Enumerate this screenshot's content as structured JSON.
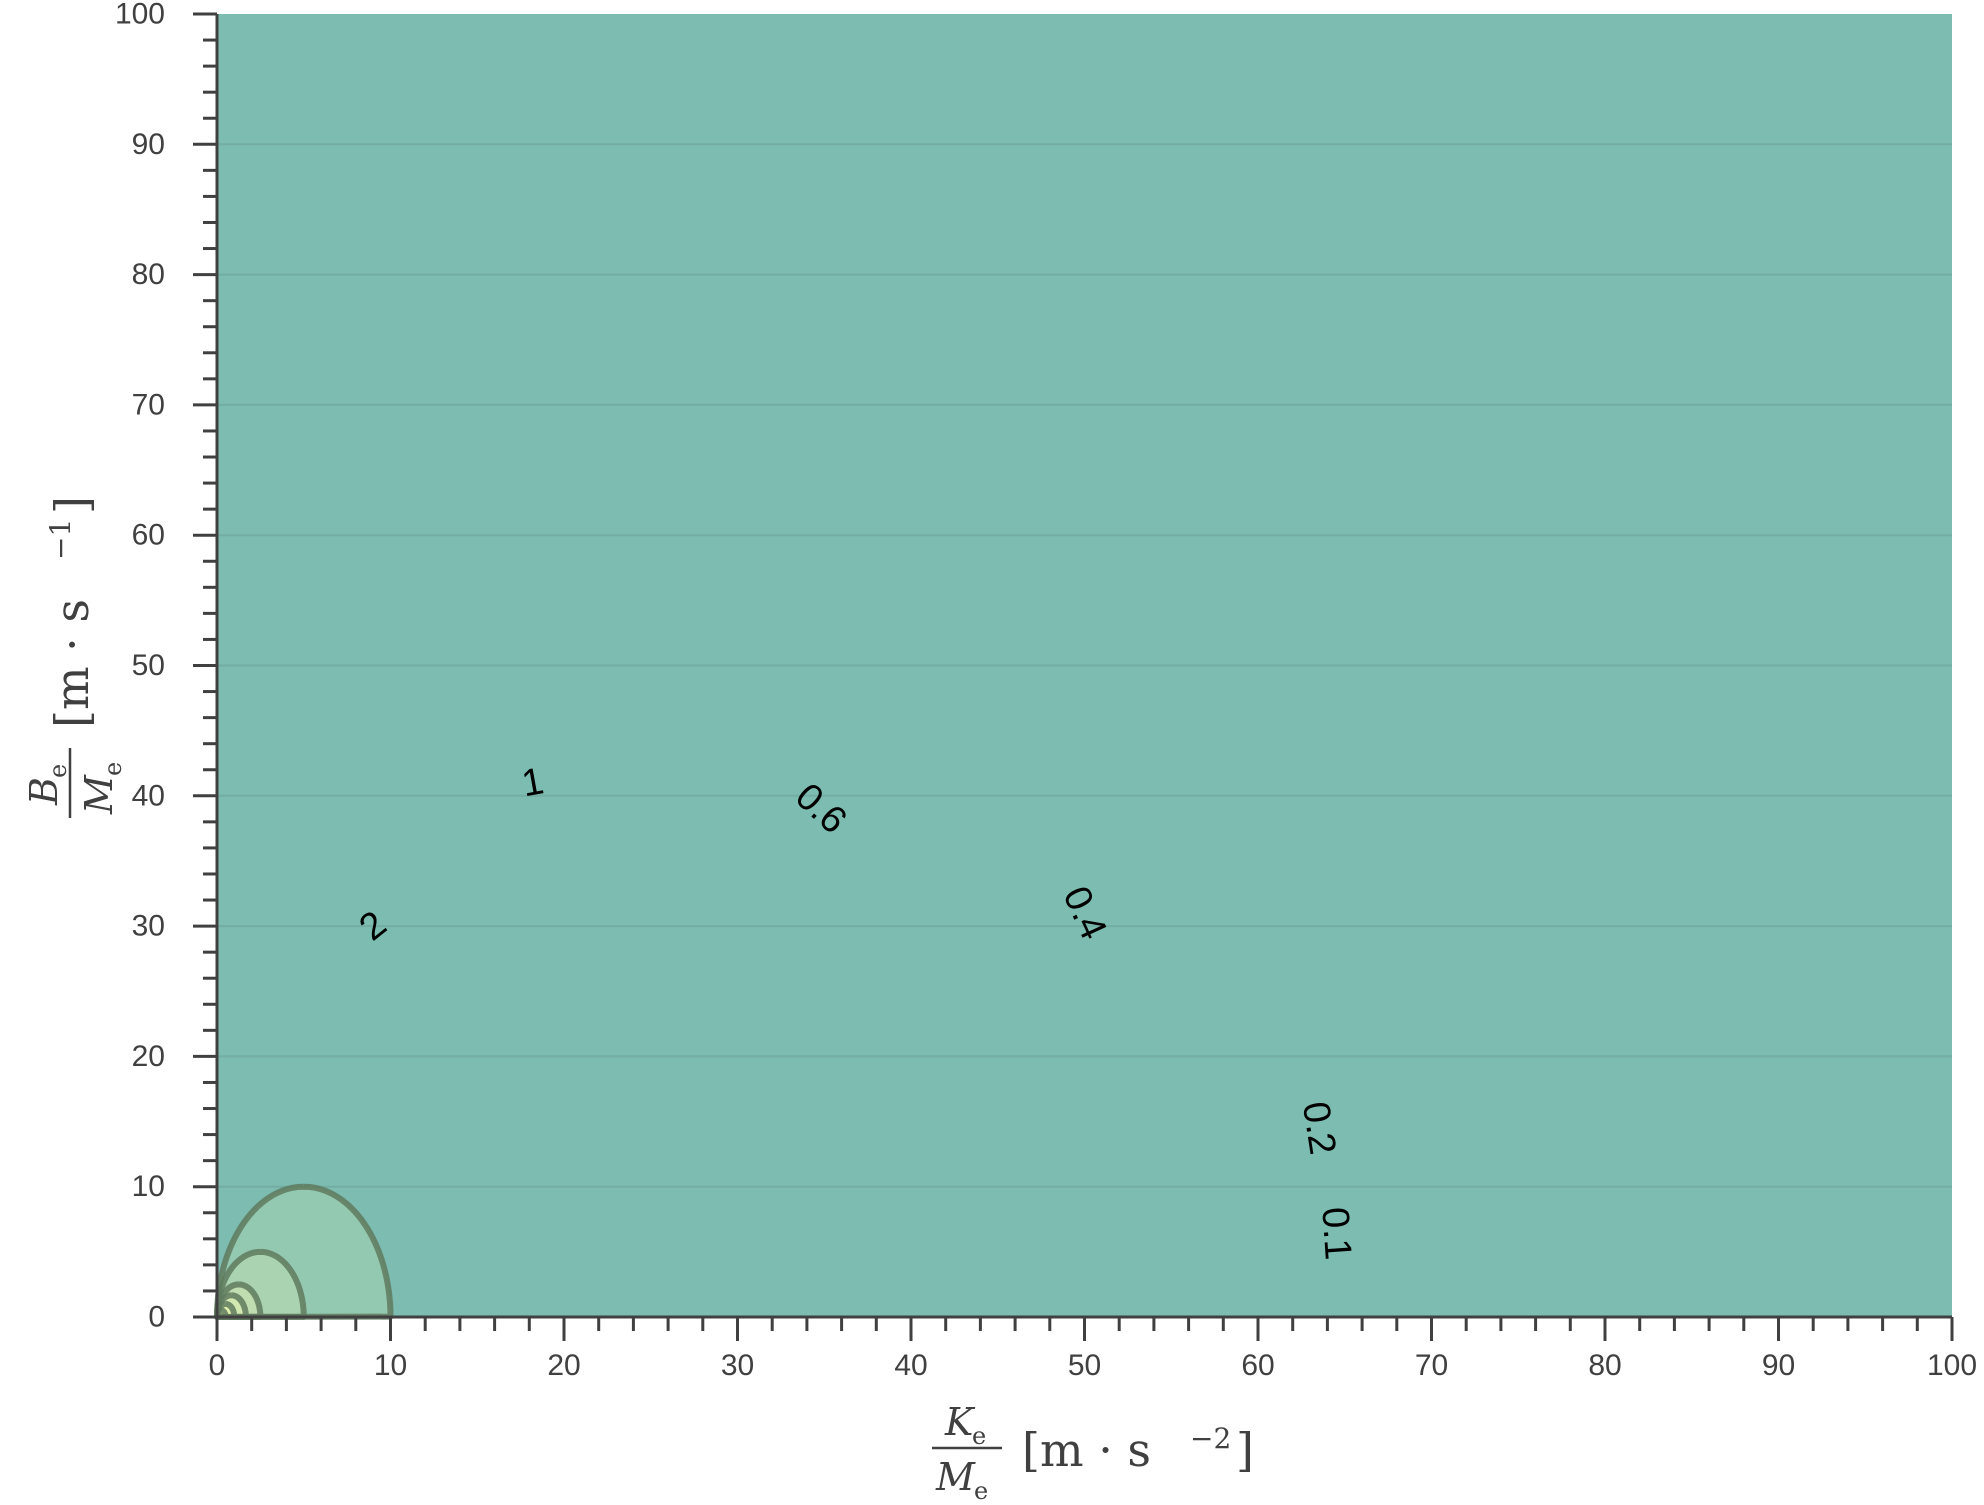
{
  "chart_data": {
    "type": "contour",
    "x_range": [
      0,
      100
    ],
    "y_range": [
      0,
      100
    ],
    "x_ticks": [
      "0",
      "10",
      "20",
      "30",
      "40",
      "50",
      "60",
      "70",
      "80",
      "90",
      "100"
    ],
    "y_ticks": [
      "0",
      "10",
      "20",
      "30",
      "40",
      "50",
      "60",
      "70",
      "80",
      "90",
      "100"
    ],
    "xlabel": {
      "frac_num": "K",
      "frac_num_sub": "e",
      "frac_den": "M",
      "frac_den_sub": "e",
      "units_open": "[m · s",
      "units_exp": "−2",
      "units_close": "]"
    },
    "ylabel": {
      "frac_num": "B",
      "frac_num_sub": "e",
      "frac_den": "M",
      "frac_den_sub": "e",
      "units_open": "[m · s",
      "units_exp": "−1",
      "units_close": "]"
    },
    "levels": [
      0.1,
      0.2,
      0.4,
      0.6,
      1,
      2
    ],
    "level_labels": [
      "0.1",
      "0.2",
      "0.4",
      "0.6",
      "1",
      "2"
    ],
    "contour_label_points": [
      {
        "label": "0.1",
        "x": 64.5,
        "y": 6.4
      },
      {
        "label": "0.2",
        "x": 63.5,
        "y": 14.5
      },
      {
        "label": "0.4",
        "x": 50.0,
        "y": 31.0
      },
      {
        "label": "0.6",
        "x": 34.8,
        "y": 39.0
      },
      {
        "label": "1",
        "x": 18.2,
        "y": 41.0
      },
      {
        "label": "2",
        "x": 9.0,
        "y": 30.0
      }
    ],
    "fill_colors": [
      "#7dbcb1",
      "#93c9b1",
      "#aad4b1",
      "#bfddb1",
      "#d2e8b0",
      "#e3f1ad",
      "#fbfdb0"
    ],
    "line_color": "#5f7a5e",
    "grid": "horizontal"
  }
}
